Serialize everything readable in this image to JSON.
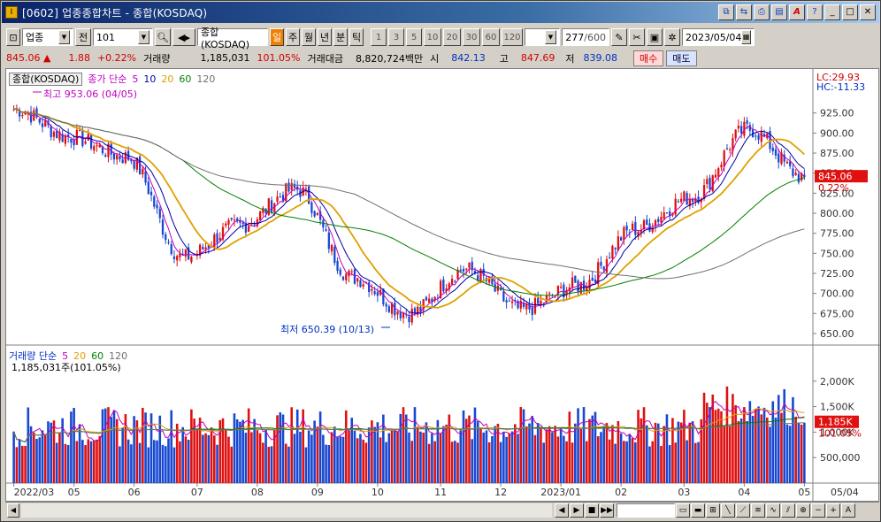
{
  "window": {
    "title": "[0602] 업종종합차트 - 종합(KOSDAQ)"
  },
  "toolbar": {
    "market_type": "업종",
    "all_label": "전",
    "code": "101",
    "name": "종합(KOSDAQ)",
    "periods": [
      "일",
      "주",
      "월",
      "년",
      "분",
      "틱"
    ],
    "selected_period": "일",
    "intervals": [
      "1",
      "3",
      "5",
      "10",
      "20",
      "30",
      "60",
      "120"
    ],
    "count_shown": "277",
    "count_total": "/600",
    "date": "2023/05/04"
  },
  "quote": {
    "price": "845.06",
    "change_arrow": "▲",
    "change": "1.88",
    "change_pct": "+0.22%",
    "volume_label": "거래량",
    "volume": "1,185,031",
    "volume_pct": "101.05%",
    "amount_label": "거래대금",
    "amount": "8,820,724백만",
    "open_label": "시",
    "open": "842.13",
    "high_label": "고",
    "high": "847.69",
    "low_label": "저",
    "low": "839.08",
    "buy_label": "매수",
    "sell_label": "매도"
  },
  "price_panel": {
    "series_tag": "종합(KOSDAQ)",
    "legend_prefix": "종가 단순",
    "ma": [
      "5",
      "10",
      "20",
      "60",
      "120"
    ],
    "lc": "LC:29.93",
    "hc": "HC:-11.33",
    "high_mark": "최고 953.06 (04/05)",
    "low_mark": "최저 650.39 (10/13)",
    "current_price": "845.06",
    "current_pct": "0.22%",
    "y_ticks": [
      "925.00",
      "900.00",
      "875.00",
      "850.00",
      "825.00",
      "800.00",
      "775.00",
      "750.00",
      "725.00",
      "700.00",
      "675.00",
      "650.00"
    ]
  },
  "volume_panel": {
    "legend_prefix": "거래량 단순",
    "ma": [
      "5",
      "20",
      "60",
      "120"
    ],
    "value_text": "1,185,031주(101.05%)",
    "current": "1,185K",
    "current_pct": "101.05%",
    "y_ticks": [
      "2,000K",
      "1,500K",
      "1,000K",
      "500,000"
    ]
  },
  "x_axis": [
    "2022/03",
    "05",
    "06",
    "07",
    "08",
    "09",
    "10",
    "11",
    "12",
    "2023/01",
    "02",
    "03",
    "04",
    "05"
  ],
  "x_axis_right": "05/04",
  "colors": {
    "up": "#e01010",
    "down": "#1848d0",
    "ma5": "#c000c0",
    "ma10": "#0000a0",
    "ma20": "#e0a000",
    "ma60": "#008000",
    "ma120": "#707070"
  },
  "chart_data": {
    "type": "candlestick",
    "note_points": [
      {
        "month": "2022/03",
        "close": 930
      },
      {
        "month": "2022/04",
        "close": 895
      },
      {
        "month": "2022/05",
        "close": 870
      },
      {
        "month": "2022/06",
        "close": 745
      },
      {
        "month": "2022/07",
        "close": 785
      },
      {
        "month": "2022/08",
        "close": 830
      },
      {
        "month": "2022/09",
        "close": 720
      },
      {
        "month": "2022/10",
        "close": 675
      },
      {
        "month": "2022/11",
        "close": 730
      },
      {
        "month": "2022/12",
        "close": 680
      },
      {
        "month": "2023/01",
        "close": 710
      },
      {
        "month": "2023/02",
        "close": 780
      },
      {
        "month": "2023/03",
        "close": 820
      },
      {
        "month": "2023/04",
        "close": 905
      },
      {
        "month": "2023/05",
        "close": 845.06
      }
    ],
    "ylim": [
      640,
      960
    ]
  }
}
